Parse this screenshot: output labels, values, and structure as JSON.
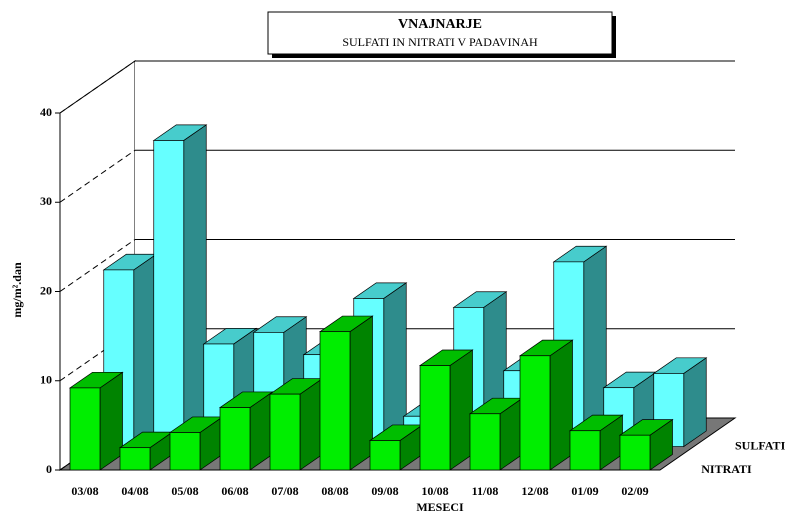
{
  "chart_data": {
    "type": "bar3d",
    "title": "VNAJNARJE",
    "subtitle": "SULFATI IN NITRATI V PADAVINAH",
    "x_label": "MESECI",
    "y_label": "mg/m².dan",
    "categories": [
      "03/08",
      "04/08",
      "05/08",
      "06/08",
      "07/08",
      "08/08",
      "09/08",
      "10/08",
      "11/08",
      "12/08",
      "01/09",
      "02/09"
    ],
    "series": [
      {
        "name": "SULFATI",
        "color": "#66ffff",
        "values": [
          19.8,
          34.3,
          11.5,
          12.8,
          10.3,
          16.6,
          3.4,
          15.6,
          8.5,
          20.7,
          6.6,
          8.2
        ]
      },
      {
        "name": "NITRATI",
        "color": "#00ee00",
        "values": [
          9.2,
          2.5,
          4.2,
          7.0,
          8.5,
          15.5,
          3.3,
          11.7,
          6.3,
          12.8,
          4.4,
          3.9
        ]
      }
    ],
    "ylim": [
      0,
      40
    ],
    "yticks": [
      0,
      10,
      20,
      30,
      40
    ],
    "grid": true
  }
}
